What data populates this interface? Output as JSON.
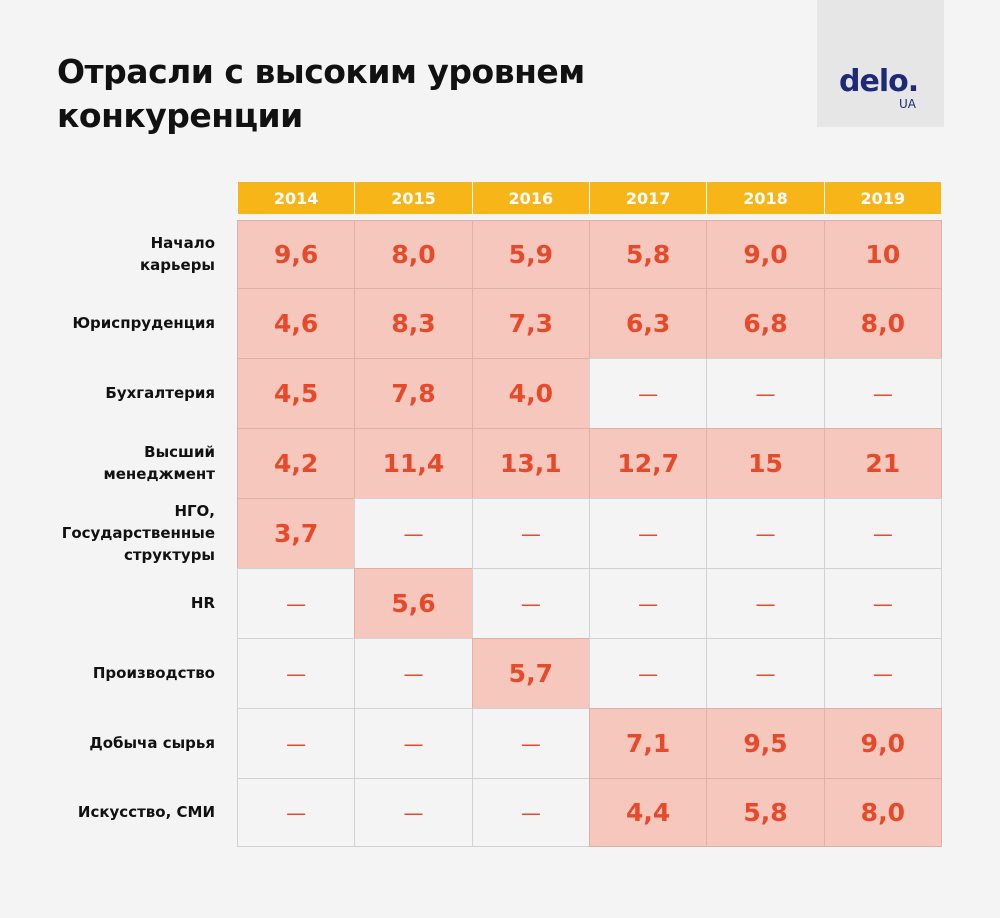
{
  "header": {
    "title": "Отрасли с высоким уровнем\nконкуренции",
    "logo": {
      "main": "delo.",
      "sub": "UA"
    }
  },
  "table": {
    "columns": [
      "2014",
      "2015",
      "2016",
      "2017",
      "2018",
      "2019"
    ],
    "rows": [
      {
        "label": "Начало\nкарьеры",
        "cells": [
          "9,6",
          "8,0",
          "5,9",
          "5,8",
          "9,0",
          "10"
        ]
      },
      {
        "label": "Юриспруденция",
        "cells": [
          "4,6",
          "8,3",
          "7,3",
          "6,3",
          "6,8",
          "8,0"
        ]
      },
      {
        "label": "Бухгалтерия",
        "cells": [
          "4,5",
          "7,8",
          "4,0",
          "—",
          "—",
          "—"
        ]
      },
      {
        "label": "Высший\nменеджмент",
        "cells": [
          "4,2",
          "11,4",
          "13,1",
          "12,7",
          "15",
          "21"
        ]
      },
      {
        "label": "НГО,\nГосударственные\nструктуры",
        "cells": [
          "3,7",
          "—",
          "—",
          "—",
          "—",
          "—"
        ]
      },
      {
        "label": "HR",
        "cells": [
          "—",
          "5,6",
          "—",
          "—",
          "—",
          "—"
        ]
      },
      {
        "label": "Производство",
        "cells": [
          "—",
          "—",
          "5,7",
          "—",
          "—",
          "—"
        ]
      },
      {
        "label": "Добыча сырья",
        "cells": [
          "—",
          "—",
          "—",
          "7,1",
          "9,5",
          "9,0"
        ]
      },
      {
        "label": "Искусство, СМИ",
        "cells": [
          "—",
          "—",
          "—",
          "4,4",
          "5,8",
          "8,0"
        ]
      }
    ]
  }
}
